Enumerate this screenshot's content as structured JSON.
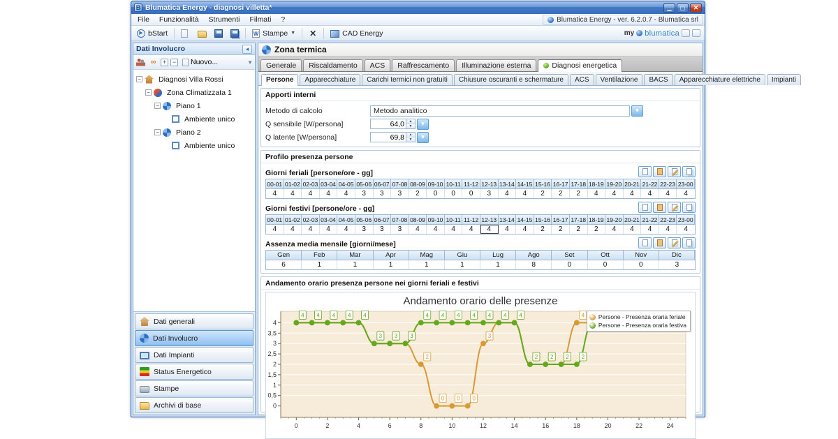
{
  "window": {
    "title": "Blumatica Energy - diagnosi villetta*",
    "version_label": "Blumatica Energy - ver. 6.2.0.7 - Blumatica srl"
  },
  "menu": {
    "items": [
      "File",
      "Funzionalità",
      "Strumenti",
      "Filmati",
      "?"
    ]
  },
  "toolbar": {
    "bstart": "bStart",
    "stampe": "Stampe",
    "cad": "CAD Energy",
    "brand_prefix": "my",
    "brand_name": "blumatica"
  },
  "sidebar": {
    "header": "Dati Involucro",
    "new_button": "Nuovo...",
    "tree": [
      {
        "label": "Diagnosi Villa Rossi",
        "level": 0,
        "icon": "home",
        "expander": true
      },
      {
        "label": "Zona Climatizzata 1",
        "level": 1,
        "icon": "zone",
        "expander": true
      },
      {
        "label": "Piano 1",
        "level": 2,
        "icon": "fan",
        "expander": true
      },
      {
        "label": "Ambiente unico",
        "level": 3,
        "icon": "room",
        "expander": false
      },
      {
        "label": "Piano 2",
        "level": 2,
        "icon": "fan",
        "expander": true
      },
      {
        "label": "Ambiente unico",
        "level": 3,
        "icon": "room",
        "expander": false
      }
    ],
    "nav": [
      {
        "label": "Dati generali",
        "icon": "home",
        "selected": false
      },
      {
        "label": "Dati Involucro",
        "icon": "fan",
        "selected": true
      },
      {
        "label": "Dati Impianti",
        "icon": "pc",
        "selected": false
      },
      {
        "label": "Status Energetico",
        "icon": "energy",
        "selected": false
      },
      {
        "label": "Stampe",
        "icon": "print",
        "selected": false
      },
      {
        "label": "Archivi di base",
        "icon": "folder",
        "selected": false
      }
    ]
  },
  "main": {
    "title": "Zona termica",
    "tabs": [
      "Generale",
      "Riscaldamento",
      "ACS",
      "Raffrescamento",
      "Illuminazione esterna",
      "Diagnosi energetica"
    ],
    "active_tab": "Diagnosi energetica",
    "subtabs": [
      "Persone",
      "Apparecchiature",
      "Carichi termici non gratuiti",
      "Chiusure oscuranti e schermature",
      "ACS",
      "Ventilazione",
      "BACS",
      "Apparecchiature elettriche",
      "Impianti"
    ],
    "active_subtab": "Persone",
    "apporti": {
      "title": "Apporti interni",
      "metodo_label": "Metodo di calcolo",
      "metodo_value": "Metodo analitico",
      "qsens_label": "Q sensibile [W/persona]",
      "qsens_value": "64,0",
      "qlat_label": "Q latente  [W/persona]",
      "qlat_value": "69,8"
    },
    "profilo": {
      "title": "Profilo presenza persone",
      "feriali_label": "Giorni feriali [persone/ore - gg]",
      "festivi_label": "Giorni festivi [persone/ore - gg]",
      "assenza_label": "Assenza media mensile [giorni/mese]",
      "hours": [
        "00-01",
        "01-02",
        "02-03",
        "03-04",
        "04-05",
        "05-06",
        "06-07",
        "07-08",
        "08-09",
        "09-10",
        "10-11",
        "11-12",
        "12-13",
        "13-14",
        "14-15",
        "15-16",
        "16-17",
        "17-18",
        "18-19",
        "19-20",
        "20-21",
        "21-22",
        "22-23",
        "23-00"
      ],
      "feriali": [
        4,
        4,
        4,
        4,
        4,
        3,
        3,
        3,
        2,
        0,
        0,
        0,
        3,
        4,
        4,
        2,
        2,
        2,
        4,
        4,
        4,
        4,
        4,
        4
      ],
      "festivi": [
        4,
        4,
        4,
        4,
        4,
        3,
        3,
        3,
        4,
        4,
        4,
        4,
        4,
        4,
        4,
        2,
        2,
        2,
        2,
        4,
        4,
        4,
        4,
        4
      ],
      "festivi_selected_index": 12,
      "months": [
        "Gen",
        "Feb",
        "Mar",
        "Apr",
        "Mag",
        "Giu",
        "Lug",
        "Ago",
        "Set",
        "Ott",
        "Nov",
        "Dic"
      ],
      "assenza": [
        6,
        1,
        1,
        1,
        1,
        1,
        1,
        8,
        0,
        0,
        0,
        3
      ]
    },
    "chart_section_title": "Andamento orario presenza persone nei giorni feriali e festivi"
  },
  "chart_data": {
    "type": "line",
    "title": "Andamento orario delle presenze",
    "x": [
      0,
      1,
      2,
      3,
      4,
      5,
      6,
      7,
      8,
      9,
      10,
      11,
      12,
      13,
      14,
      15,
      16,
      17,
      18,
      19,
      20,
      21,
      22,
      23
    ],
    "series": [
      {
        "name": "Persone - Presenza oraria feriale",
        "color": "#d99a36",
        "values": [
          4,
          4,
          4,
          4,
          4,
          3,
          3,
          3,
          2,
          0,
          0,
          0,
          3,
          4,
          4,
          2,
          2,
          2,
          4,
          4,
          4,
          4,
          4,
          4
        ]
      },
      {
        "name": "Persone - Presenza oraria festiva",
        "color": "#64a81e",
        "values": [
          4,
          4,
          4,
          4,
          4,
          3,
          3,
          3,
          4,
          4,
          4,
          4,
          4,
          4,
          4,
          2,
          2,
          2,
          2,
          4,
          4,
          4,
          4,
          4
        ]
      }
    ],
    "xlim": [
      -1,
      25
    ],
    "ylim": [
      -0.55,
      4.55
    ],
    "x_ticks": [
      0,
      2,
      4,
      6,
      8,
      10,
      12,
      14,
      16,
      18,
      20,
      22,
      24
    ],
    "y_ticks": [
      0,
      0.5,
      1,
      1.5,
      2,
      2.5,
      3,
      3.5,
      4
    ],
    "grid": true,
    "legend_position": "top-right",
    "plot_bg": "#f6ecd9",
    "point_labels": true
  }
}
